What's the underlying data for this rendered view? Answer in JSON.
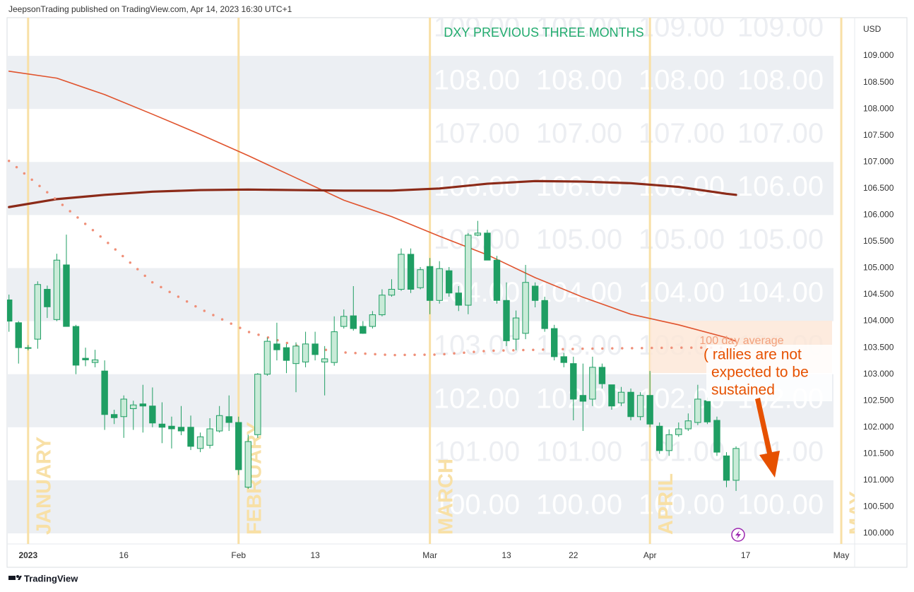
{
  "header": "JeepsonTrading published on TradingView.com, Apr 14, 2023 16:30 UTC+1",
  "footer": "TradingView",
  "chart_data": {
    "type": "candlestick",
    "title": "DXY PREVIOUS THREE MONTHS",
    "y_axis_label": "USD",
    "annotations": [
      "100 day average",
      "( rallies are not",
      "expected to be",
      "sustained"
    ],
    "up_color": "#c9ebd8",
    "down_color": "#1f9e63",
    "border_color": "#1f9e63",
    "xlim": [
      -0.2,
      88.4
    ],
    "ylim": [
      99.8,
      109.72
    ],
    "xticks": [
      {
        "value": 2,
        "label": "2023"
      },
      {
        "value": 12,
        "label": "16"
      },
      {
        "value": 24,
        "label": "Feb"
      },
      {
        "value": 32,
        "label": "13"
      },
      {
        "value": 44,
        "label": "Mar"
      },
      {
        "value": 52,
        "label": "13"
      },
      {
        "value": 59,
        "label": "22"
      },
      {
        "value": 67,
        "label": "Apr"
      },
      {
        "value": 77,
        "label": "17"
      },
      {
        "value": 87,
        "label": "May"
      }
    ],
    "yticks": [
      {
        "value": 100,
        "label": "100.000"
      },
      {
        "value": 100.5,
        "label": "100.500"
      },
      {
        "value": 101,
        "label": "101.000"
      },
      {
        "value": 101.5,
        "label": "101.500"
      },
      {
        "value": 102,
        "label": "102.000"
      },
      {
        "value": 102.5,
        "label": "102.500"
      },
      {
        "value": 103,
        "label": "103.000"
      },
      {
        "value": 103.5,
        "label": "103.500"
      },
      {
        "value": 104,
        "label": "104.000"
      },
      {
        "value": 104.5,
        "label": "104.500"
      },
      {
        "value": 105,
        "label": "105.000"
      },
      {
        "value": 105.5,
        "label": "105.500"
      },
      {
        "value": 106,
        "label": "106.000"
      },
      {
        "value": 106.5,
        "label": "106.500"
      },
      {
        "value": 107,
        "label": "107.000"
      },
      {
        "value": 107.5,
        "label": "107.500"
      },
      {
        "value": 108,
        "label": "108.000"
      },
      {
        "value": 108.5,
        "label": "108.500"
      },
      {
        "value": 109,
        "label": "109.000"
      }
    ],
    "bands": [
      [
        100,
        101
      ],
      [
        102,
        103
      ],
      [
        104,
        105
      ],
      [
        106,
        107
      ],
      [
        108,
        109
      ]
    ],
    "band_color": "#eceff3",
    "watermark_levels": [
      {
        "value": 109,
        "label": "109.00"
      },
      {
        "value": 108,
        "label": "108.00"
      },
      {
        "value": 107,
        "label": "107.00"
      },
      {
        "value": 106,
        "label": "106.00"
      },
      {
        "value": 105,
        "label": "105.00"
      },
      {
        "value": 104,
        "label": "104.00"
      },
      {
        "value": 103,
        "label": "103.00"
      },
      {
        "value": 102,
        "label": "102.00"
      },
      {
        "value": 101,
        "label": "101.00"
      },
      {
        "value": 100,
        "label": "100.00"
      }
    ],
    "month_markers": [
      {
        "value": 2,
        "label": "JANUARY"
      },
      {
        "value": 24,
        "label": "FEBRUARY"
      },
      {
        "value": 44,
        "label": "MARCH"
      },
      {
        "value": 67,
        "label": "APRIL"
      },
      {
        "value": 87,
        "label": "MAY"
      }
    ],
    "month_color": "#f8e0a6",
    "open": [
      104.4,
      103.97,
      103.5,
      103.66,
      104.6,
      104.03,
      105.06,
      103.9,
      103.3,
      103.22,
      103.06,
      102.24,
      102.2,
      102.35,
      102.44,
      102.4,
      102.06,
      102.02,
      102.0,
      102.0,
      101.6,
      101.66,
      101.93,
      102.2,
      102.09,
      100.87,
      101.86,
      103.0,
      103.57,
      103.5,
      103.2,
      103.23,
      103.57,
      103.23,
      103.22,
      103.9,
      104.1,
      103.9,
      103.9,
      104.12,
      104.49,
      104.6,
      105.26,
      104.63,
      105.03,
      104.39,
      104.95,
      104.53,
      104.3,
      105.62,
      105.66,
      105.15,
      104.39,
      103.66,
      103.77,
      104.66,
      104.39,
      103.86,
      103.33,
      103.2,
      102.6,
      102.53,
      103.13,
      102.8,
      102.46,
      102.66,
      102.2,
      102.6,
      102.02,
      101.56,
      101.86,
      101.97,
      102.09,
      102.5,
      102.13,
      101.46,
      101.0
    ],
    "high": [
      104.5,
      104.0,
      103.55,
      104.75,
      104.67,
      105.27,
      105.63,
      103.93,
      103.5,
      103.46,
      103.26,
      102.33,
      102.6,
      102.5,
      102.8,
      102.75,
      102.47,
      102.2,
      102.4,
      102.22,
      101.9,
      102.17,
      102.4,
      102.6,
      102.2,
      101.86,
      103.02,
      103.69,
      103.97,
      103.57,
      103.6,
      103.8,
      103.8,
      103.53,
      104.09,
      104.22,
      104.66,
      104.0,
      104.19,
      104.6,
      104.79,
      105.37,
      105.37,
      105.02,
      105.19,
      105.13,
      105.02,
      104.66,
      105.66,
      105.89,
      105.72,
      105.23,
      104.73,
      104.2,
      105.06,
      104.73,
      104.46,
      103.93,
      103.4,
      103.33,
      103.2,
      103.33,
      103.2,
      102.8,
      102.76,
      102.73,
      102.66,
      103.06,
      102.09,
      101.96,
      102.09,
      102.26,
      102.8,
      102.56,
      102.2,
      101.53,
      101.64
    ],
    "low": [
      103.8,
      103.2,
      103.45,
      103.48,
      104.06,
      104.0,
      103.9,
      103.0,
      103.15,
      103.13,
      101.95,
      102.06,
      101.8,
      101.95,
      101.9,
      102.0,
      101.7,
      101.6,
      101.85,
      101.57,
      101.53,
      101.6,
      101.9,
      101.93,
      101.1,
      100.84,
      101.8,
      102.97,
      103.26,
      103.02,
      102.66,
      103.13,
      103.26,
      102.6,
      103.16,
      103.86,
      103.82,
      103.76,
      103.86,
      104.09,
      104.46,
      104.57,
      104.53,
      104.6,
      104.13,
      104.33,
      104.46,
      104.19,
      104.13,
      105.6,
      105.15,
      104.33,
      103.53,
      103.45,
      103.66,
      104.26,
      103.8,
      103.26,
      103.13,
      102.13,
      101.93,
      102.4,
      102.73,
      102.33,
      102.4,
      102.13,
      102.13,
      102.0,
      101.5,
      101.46,
      101.82,
      101.93,
      102.04,
      102.06,
      101.46,
      100.87,
      100.8
    ],
    "close": [
      104.0,
      103.5,
      103.5,
      104.69,
      104.27,
      105.15,
      103.9,
      103.17,
      103.27,
      103.27,
      102.24,
      102.18,
      102.53,
      102.42,
      102.4,
      102.08,
      102.0,
      101.97,
      101.93,
      101.64,
      101.82,
      101.97,
      102.22,
      102.09,
      101.2,
      101.73,
      103.0,
      103.62,
      103.46,
      103.26,
      103.53,
      103.57,
      103.37,
      103.29,
      103.8,
      104.09,
      103.86,
      103.77,
      104.12,
      104.49,
      104.6,
      105.26,
      104.6,
      104.97,
      104.39,
      104.99,
      104.53,
      104.3,
      105.62,
      105.66,
      105.15,
      104.39,
      103.63,
      104.06,
      104.73,
      104.39,
      103.86,
      103.33,
      103.22,
      102.53,
      102.49,
      103.13,
      102.82,
      102.4,
      102.66,
      102.2,
      102.6,
      102.06,
      101.56,
      101.86,
      101.97,
      102.12,
      102.53,
      102.1,
      101.53,
      101.0,
      101.6
    ],
    "lines": [
      {
        "color": "#e0532d",
        "width": 1.6,
        "dotted": false,
        "x": [
          0,
          5,
          10,
          15,
          20,
          25,
          30,
          35,
          40,
          45,
          50,
          55,
          60,
          65,
          70,
          75,
          76
        ],
        "values": [
          108.71,
          108.58,
          108.27,
          107.9,
          107.52,
          107.12,
          106.7,
          106.28,
          105.97,
          105.6,
          105.25,
          104.82,
          104.45,
          104.13,
          103.93,
          103.69,
          103.62
        ]
      },
      {
        "color": "#8b2a18",
        "width": 3.2,
        "dotted": false,
        "x": [
          0,
          5,
          10,
          15,
          20,
          25,
          30,
          35,
          40,
          45,
          50,
          55,
          60,
          65,
          70,
          75,
          76
        ],
        "values": [
          106.15,
          106.3,
          106.38,
          106.44,
          106.47,
          106.48,
          106.47,
          106.46,
          106.46,
          106.5,
          106.59,
          106.64,
          106.63,
          106.6,
          106.53,
          106.4,
          106.38
        ]
      },
      {
        "color": "#ef8f78",
        "width": 3.5,
        "dotted": true,
        "x": [
          0,
          5,
          10,
          15,
          20,
          25,
          30,
          35,
          40,
          45,
          50,
          55,
          60,
          65,
          70,
          75,
          76
        ],
        "values": [
          107.02,
          106.28,
          105.53,
          104.73,
          104.23,
          103.8,
          103.54,
          103.41,
          103.36,
          103.37,
          103.44,
          103.46,
          103.48,
          103.49,
          103.5,
          103.5,
          103.5
        ]
      }
    ]
  }
}
